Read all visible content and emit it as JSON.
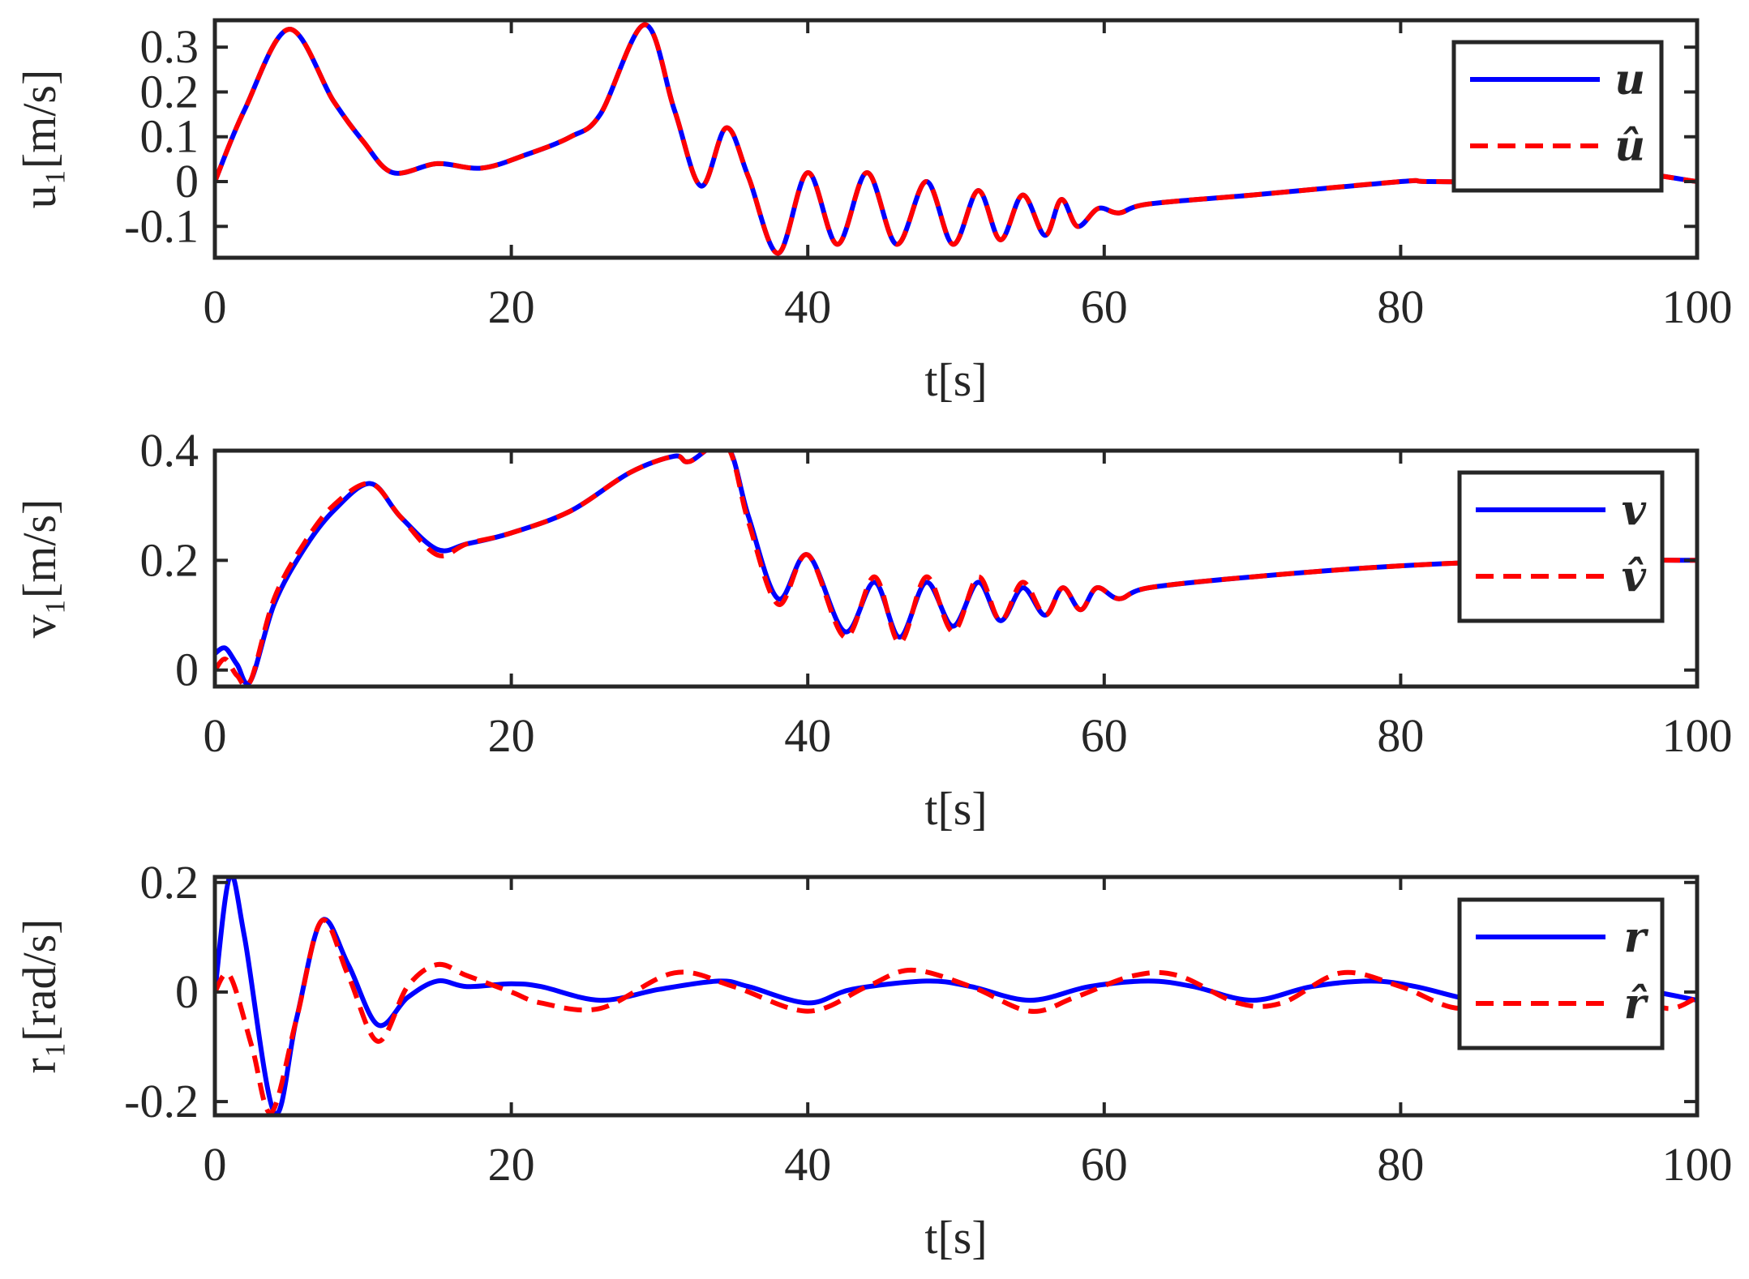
{
  "chart_data": [
    {
      "type": "line",
      "xlabel": "t[s]",
      "ylabel": "u₁[m/s]",
      "xlim": [
        0,
        100
      ],
      "ylim": [
        -0.17,
        0.36
      ],
      "xticks": [
        "0",
        "20",
        "40",
        "60",
        "80",
        "100"
      ],
      "yticks": [
        {
          "value": 0.3,
          "label": "0.3"
        },
        {
          "value": 0.2,
          "label": "0.2"
        },
        {
          "value": 0.1,
          "label": "0.1"
        },
        {
          "value": 0,
          "label": "0"
        },
        {
          "value": -0.1,
          "label": "-0.1"
        }
      ],
      "grid": false,
      "legend_position": "top-right",
      "series": [
        {
          "name": "u",
          "color": "#0000ff",
          "style": "solid",
          "x": [
            0,
            2,
            5,
            8,
            10,
            12,
            15,
            18,
            21,
            24,
            26,
            29,
            31,
            32.8,
            34.5,
            36,
            38,
            40,
            42,
            44,
            46,
            48,
            49.8,
            51.5,
            53,
            54.5,
            56,
            57.1,
            58.2,
            59.6,
            61,
            63,
            70,
            80,
            82,
            90,
            95,
            100
          ],
          "y": [
            0,
            0.16,
            0.34,
            0.18,
            0.09,
            0.02,
            0.04,
            0.03,
            0.06,
            0.1,
            0.15,
            0.35,
            0.16,
            -0.01,
            0.12,
            0.01,
            -0.16,
            0.02,
            -0.14,
            0.02,
            -0.14,
            0.0,
            -0.14,
            -0.02,
            -0.13,
            -0.03,
            -0.12,
            -0.04,
            -0.1,
            -0.06,
            -0.07,
            -0.05,
            -0.03,
            0,
            0,
            0,
            0.02,
            0
          ]
        },
        {
          "name": "û",
          "color": "#ff0000",
          "style": "dashed",
          "x": [
            0,
            2,
            5,
            8,
            10,
            12,
            15,
            18,
            21,
            24,
            26,
            29,
            31,
            32.8,
            34.5,
            36,
            38,
            40,
            42,
            44,
            46,
            48,
            49.8,
            51.5,
            53,
            54.5,
            56,
            57.1,
            58.2,
            59.6,
            61,
            63,
            70,
            80,
            82,
            90,
            95,
            100
          ],
          "y": [
            0,
            0.16,
            0.34,
            0.18,
            0.09,
            0.02,
            0.04,
            0.03,
            0.06,
            0.1,
            0.15,
            0.35,
            0.16,
            -0.01,
            0.12,
            0.01,
            -0.16,
            0.02,
            -0.14,
            0.02,
            -0.14,
            0.0,
            -0.14,
            -0.02,
            -0.13,
            -0.03,
            -0.12,
            -0.04,
            -0.1,
            -0.06,
            -0.07,
            -0.05,
            -0.03,
            0,
            0,
            0,
            0.02,
            0
          ]
        }
      ]
    },
    {
      "type": "line",
      "xlabel": "t[s]",
      "ylabel": "v₁[m/s]",
      "xlim": [
        0,
        100
      ],
      "ylim": [
        -0.03,
        0.4
      ],
      "xticks": [
        "0",
        "20",
        "40",
        "60",
        "80",
        "100"
      ],
      "yticks": [
        {
          "value": 0.4,
          "label": "0.4"
        },
        {
          "value": 0.2,
          "label": "0.2"
        },
        {
          "value": 0,
          "label": "0"
        }
      ],
      "grid": false,
      "legend_position": "top-right",
      "series": [
        {
          "name": "v",
          "color": "#0000ff",
          "style": "solid",
          "x": [
            0,
            0.7,
            1.5,
            2.4,
            4,
            6,
            8,
            10.5,
            12.5,
            15,
            17,
            20,
            24,
            28,
            31,
            32,
            34.5,
            36,
            38,
            40,
            42.5,
            44.5,
            46.2,
            48,
            49.8,
            51.5,
            53,
            54.5,
            56,
            57.2,
            58.4,
            59.5,
            61,
            63,
            70,
            80,
            90,
            100
          ],
          "y": [
            0.03,
            0.04,
            0.01,
            -0.02,
            0.12,
            0.22,
            0.29,
            0.34,
            0.28,
            0.22,
            0.23,
            0.25,
            0.29,
            0.36,
            0.39,
            0.38,
            0.41,
            0.28,
            0.13,
            0.21,
            0.07,
            0.16,
            0.06,
            0.16,
            0.08,
            0.16,
            0.09,
            0.15,
            0.1,
            0.15,
            0.11,
            0.15,
            0.13,
            0.15,
            0.17,
            0.19,
            0.2,
            0.2
          ]
        },
        {
          "name": "v̂",
          "color": "#ff0000",
          "style": "dashed",
          "x": [
            0,
            0.7,
            1.5,
            2.4,
            4,
            6,
            8,
            10.5,
            12.5,
            15,
            17,
            20,
            24,
            28,
            31,
            32,
            34.5,
            36,
            38,
            40,
            42.5,
            44.5,
            46.2,
            48,
            49.8,
            51.5,
            53,
            54.5,
            56,
            57.2,
            58.4,
            59.5,
            61,
            63,
            70,
            80,
            90,
            100
          ],
          "y": [
            0.0,
            0.02,
            -0.01,
            -0.02,
            0.13,
            0.23,
            0.3,
            0.34,
            0.28,
            0.21,
            0.23,
            0.25,
            0.29,
            0.36,
            0.39,
            0.38,
            0.41,
            0.27,
            0.12,
            0.21,
            0.06,
            0.17,
            0.05,
            0.17,
            0.07,
            0.17,
            0.09,
            0.16,
            0.1,
            0.15,
            0.11,
            0.15,
            0.13,
            0.15,
            0.17,
            0.19,
            0.2,
            0.2
          ]
        }
      ]
    },
    {
      "type": "line",
      "xlabel": "t[s]",
      "ylabel": "r₁[rad/s]",
      "xlim": [
        0,
        100
      ],
      "ylim": [
        -0.225,
        0.21
      ],
      "xticks": [
        "0",
        "20",
        "40",
        "60",
        "80",
        "100"
      ],
      "yticks": [
        {
          "value": 0.2,
          "label": "0.2"
        },
        {
          "value": 0,
          "label": "0"
        },
        {
          "value": -0.2,
          "label": "-0.2"
        }
      ],
      "grid": false,
      "legend_position": "top-right",
      "series": [
        {
          "name": "r",
          "color": "#0000ff",
          "style": "solid",
          "x": [
            0,
            1,
            2,
            4,
            5.5,
            7.2,
            9,
            11,
            13,
            15,
            17,
            20,
            22,
            26,
            30,
            34,
            36,
            40,
            43,
            48,
            51,
            55,
            59,
            63,
            66,
            70,
            74,
            78,
            81,
            85,
            88,
            92,
            96,
            100
          ],
          "y": [
            0,
            0.21,
            0.1,
            -0.22,
            -0.05,
            0.13,
            0.05,
            -0.06,
            -0.01,
            0.02,
            0.01,
            0.015,
            0.01,
            -0.015,
            0.005,
            0.02,
            0.01,
            -0.02,
            0.005,
            0.02,
            0.01,
            -0.015,
            0.01,
            0.02,
            0.01,
            -0.015,
            0.01,
            0.02,
            0.01,
            -0.015,
            -0.01,
            0.01,
            0.005,
            -0.015
          ]
        },
        {
          "name": "r̂",
          "color": "#ff0000",
          "style": "dashed",
          "x": [
            0,
            1,
            2.5,
            3.8,
            5.5,
            7.2,
            9,
            11,
            13,
            15,
            17,
            20,
            22,
            26,
            31,
            35,
            40,
            44,
            47,
            51,
            55,
            58,
            62,
            65,
            69,
            72,
            76,
            80,
            84,
            88,
            92,
            95,
            98,
            100
          ],
          "y": [
            0,
            0.03,
            -0.1,
            -0.22,
            -0.05,
            0.13,
            0.03,
            -0.09,
            0.01,
            0.05,
            0.03,
            0.0,
            -0.02,
            -0.03,
            0.035,
            0.01,
            -0.035,
            0.01,
            0.04,
            0.01,
            -0.035,
            -0.01,
            0.03,
            0.03,
            -0.02,
            -0.02,
            0.035,
            0.01,
            -0.03,
            0.0,
            0.03,
            0.0,
            -0.03,
            -0.01
          ]
        }
      ]
    }
  ]
}
